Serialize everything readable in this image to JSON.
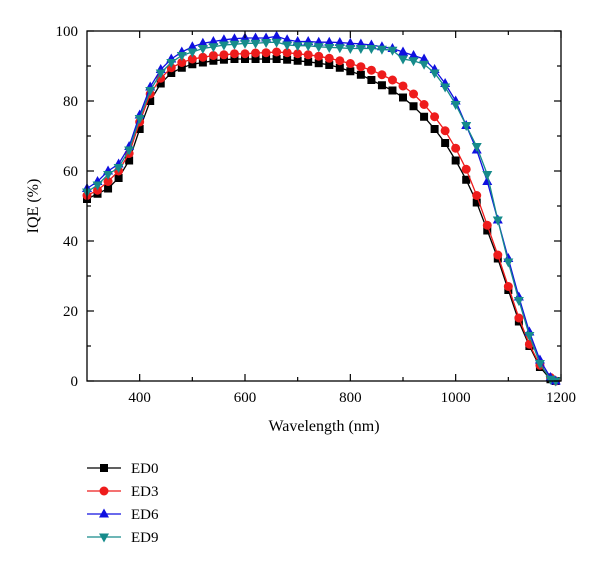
{
  "chart_data": {
    "type": "line",
    "title": "",
    "xlabel": "Wavelength (nm)",
    "ylabel": "IQE (%)",
    "xlim": [
      300,
      1200
    ],
    "ylim": [
      0,
      100
    ],
    "xticks": [
      400,
      600,
      800,
      1000,
      1200
    ],
    "yticks": [
      0,
      20,
      40,
      60,
      80,
      100
    ],
    "grid": false,
    "legend_position": "below-left",
    "series": [
      {
        "name": "ED0",
        "color": "#000000",
        "marker": "square",
        "points": [
          [
            300,
            52
          ],
          [
            320,
            53.5
          ],
          [
            340,
            55
          ],
          [
            360,
            58
          ],
          [
            380,
            63
          ],
          [
            400,
            72
          ],
          [
            420,
            80
          ],
          [
            440,
            85
          ],
          [
            460,
            88
          ],
          [
            480,
            89.5
          ],
          [
            500,
            90.5
          ],
          [
            520,
            91
          ],
          [
            540,
            91.5
          ],
          [
            560,
            91.8
          ],
          [
            580,
            92
          ],
          [
            600,
            92
          ],
          [
            620,
            92
          ],
          [
            640,
            92
          ],
          [
            660,
            92
          ],
          [
            680,
            91.8
          ],
          [
            700,
            91.5
          ],
          [
            720,
            91.2
          ],
          [
            740,
            90.8
          ],
          [
            760,
            90.3
          ],
          [
            780,
            89.5
          ],
          [
            800,
            88.5
          ],
          [
            820,
            87.5
          ],
          [
            840,
            86
          ],
          [
            860,
            84.5
          ],
          [
            880,
            83
          ],
          [
            900,
            81
          ],
          [
            920,
            78.5
          ],
          [
            940,
            75.5
          ],
          [
            960,
            72
          ],
          [
            980,
            68
          ],
          [
            1000,
            63
          ],
          [
            1020,
            57.5
          ],
          [
            1040,
            51
          ],
          [
            1060,
            43
          ],
          [
            1080,
            35
          ],
          [
            1100,
            26
          ],
          [
            1120,
            17
          ],
          [
            1140,
            10
          ],
          [
            1160,
            4
          ],
          [
            1180,
            0.5
          ],
          [
            1190,
            0
          ]
        ]
      },
      {
        "name": "ED3",
        "color": "#ee1c1c",
        "marker": "circle",
        "points": [
          [
            300,
            53
          ],
          [
            320,
            54.5
          ],
          [
            340,
            57
          ],
          [
            360,
            60
          ],
          [
            380,
            65
          ],
          [
            400,
            74
          ],
          [
            420,
            82
          ],
          [
            440,
            86.5
          ],
          [
            460,
            89.5
          ],
          [
            480,
            91
          ],
          [
            500,
            92
          ],
          [
            520,
            92.5
          ],
          [
            540,
            93
          ],
          [
            560,
            93.2
          ],
          [
            580,
            93.5
          ],
          [
            600,
            93.5
          ],
          [
            620,
            93.7
          ],
          [
            640,
            93.8
          ],
          [
            660,
            94
          ],
          [
            680,
            93.8
          ],
          [
            700,
            93.5
          ],
          [
            720,
            93.2
          ],
          [
            740,
            92.8
          ],
          [
            760,
            92.2
          ],
          [
            780,
            91.5
          ],
          [
            800,
            90.7
          ],
          [
            820,
            89.8
          ],
          [
            840,
            88.8
          ],
          [
            860,
            87.5
          ],
          [
            880,
            86
          ],
          [
            900,
            84.3
          ],
          [
            920,
            82
          ],
          [
            940,
            79
          ],
          [
            960,
            75.5
          ],
          [
            980,
            71.5
          ],
          [
            1000,
            66.5
          ],
          [
            1020,
            60.5
          ],
          [
            1040,
            53
          ],
          [
            1060,
            44.5
          ],
          [
            1080,
            36
          ],
          [
            1100,
            27
          ],
          [
            1120,
            18
          ],
          [
            1140,
            10.5
          ],
          [
            1160,
            4.5
          ],
          [
            1180,
            1
          ],
          [
            1190,
            0
          ]
        ]
      },
      {
        "name": "ED6",
        "color": "#1010e0",
        "marker": "triangle-up",
        "points": [
          [
            300,
            55
          ],
          [
            320,
            57
          ],
          [
            340,
            60
          ],
          [
            360,
            62
          ],
          [
            380,
            67
          ],
          [
            400,
            76
          ],
          [
            420,
            84
          ],
          [
            440,
            89
          ],
          [
            460,
            92
          ],
          [
            480,
            94
          ],
          [
            500,
            95.5
          ],
          [
            520,
            96.5
          ],
          [
            540,
            97
          ],
          [
            560,
            97.5
          ],
          [
            580,
            97.8
          ],
          [
            600,
            98
          ],
          [
            620,
            98
          ],
          [
            640,
            98
          ],
          [
            660,
            98.5
          ],
          [
            680,
            97.5
          ],
          [
            700,
            97
          ],
          [
            720,
            97
          ],
          [
            740,
            96.8
          ],
          [
            760,
            96.8
          ],
          [
            780,
            96.7
          ],
          [
            800,
            96.5
          ],
          [
            820,
            96.3
          ],
          [
            840,
            96
          ],
          [
            860,
            95.5
          ],
          [
            880,
            95
          ],
          [
            900,
            94
          ],
          [
            920,
            93
          ],
          [
            940,
            92
          ],
          [
            960,
            89
          ],
          [
            980,
            85
          ],
          [
            1000,
            80
          ],
          [
            1020,
            73
          ],
          [
            1040,
            66
          ],
          [
            1060,
            57
          ],
          [
            1080,
            46
          ],
          [
            1100,
            35
          ],
          [
            1120,
            24
          ],
          [
            1140,
            14
          ],
          [
            1160,
            6
          ],
          [
            1180,
            1
          ],
          [
            1190,
            0
          ]
        ]
      },
      {
        "name": "ED9",
        "color": "#168b8b",
        "marker": "triangle-down",
        "points": [
          [
            300,
            54
          ],
          [
            320,
            56
          ],
          [
            340,
            59
          ],
          [
            360,
            61
          ],
          [
            380,
            66
          ],
          [
            400,
            75
          ],
          [
            420,
            83
          ],
          [
            440,
            88
          ],
          [
            460,
            91
          ],
          [
            480,
            93
          ],
          [
            500,
            94
          ],
          [
            520,
            95
          ],
          [
            540,
            95.5
          ],
          [
            560,
            96
          ],
          [
            580,
            96.2
          ],
          [
            600,
            96.5
          ],
          [
            620,
            96.5
          ],
          [
            640,
            96.7
          ],
          [
            660,
            96.8
          ],
          [
            680,
            96
          ],
          [
            700,
            95.8
          ],
          [
            720,
            95.8
          ],
          [
            740,
            95.5
          ],
          [
            760,
            95.3
          ],
          [
            780,
            95.2
          ],
          [
            800,
            95
          ],
          [
            820,
            95
          ],
          [
            840,
            95
          ],
          [
            860,
            94.8
          ],
          [
            880,
            94.5
          ],
          [
            900,
            92
          ],
          [
            920,
            91.5
          ],
          [
            940,
            90.5
          ],
          [
            960,
            88
          ],
          [
            980,
            84
          ],
          [
            1000,
            79
          ],
          [
            1020,
            73
          ],
          [
            1040,
            67
          ],
          [
            1060,
            59
          ],
          [
            1080,
            46
          ],
          [
            1100,
            34
          ],
          [
            1120,
            23
          ],
          [
            1140,
            13
          ],
          [
            1160,
            5
          ],
          [
            1180,
            0.5
          ],
          [
            1190,
            0
          ]
        ]
      }
    ]
  }
}
